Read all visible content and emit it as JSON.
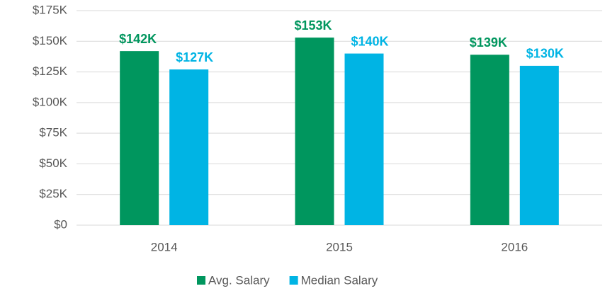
{
  "chart_data": {
    "type": "bar",
    "categories": [
      "2014",
      "2015",
      "2016"
    ],
    "series": [
      {
        "name": "Avg. Salary",
        "color": "#00965e",
        "values": [
          142000,
          153000,
          139000
        ],
        "value_labels": [
          "$142K",
          "$153K",
          "$139K"
        ]
      },
      {
        "name": "Median Salary",
        "color": "#00b4e4",
        "values": [
          127000,
          140000,
          130000
        ],
        "value_labels": [
          "$127K",
          "$140K",
          "$130K"
        ]
      }
    ],
    "ylim": [
      0,
      175000
    ],
    "yticks": [
      {
        "value": 0,
        "label": "$0"
      },
      {
        "value": 25000,
        "label": "$25K"
      },
      {
        "value": 50000,
        "label": "$50K"
      },
      {
        "value": 75000,
        "label": "$75K"
      },
      {
        "value": 100000,
        "label": "$100K"
      },
      {
        "value": 125000,
        "label": "$125K"
      },
      {
        "value": 150000,
        "label": "$150K"
      },
      {
        "value": 175000,
        "label": "$175K"
      }
    ],
    "grid": true,
    "legend": "bottom"
  }
}
